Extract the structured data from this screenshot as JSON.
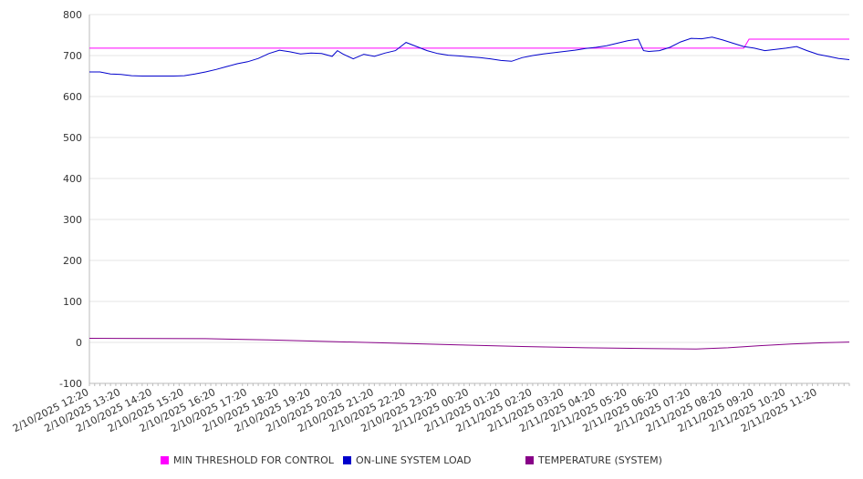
{
  "chart_data": {
    "type": "line",
    "title": "",
    "xlabel": "",
    "ylabel": "",
    "ylim": [
      -100,
      800
    ],
    "yticks": [
      -100,
      0,
      100,
      200,
      300,
      400,
      500,
      600,
      700,
      800
    ],
    "x_range": [
      "2/10/2025 12:20",
      "2/11/2025 12:20"
    ],
    "xtick_labels": [
      "2/10/2025 12:20",
      "2/10/2025 13:20",
      "2/10/2025 14:20",
      "2/10/2025 15:20",
      "2/10/2025 16:20",
      "2/10/2025 17:20",
      "2/10/2025 18:20",
      "2/10/2025 19:20",
      "2/10/2025 20:20",
      "2/10/2025 21:20",
      "2/10/2025 22:20",
      "2/10/2025 23:20",
      "2/11/2025 00:20",
      "2/11/2025 01:20",
      "2/11/2025 02:20",
      "2/11/2025 03:20",
      "2/11/2025 04:20",
      "2/11/2025 05:20",
      "2/11/2025 06:20",
      "2/11/2025 07:20",
      "2/11/2025 08:20",
      "2/11/2025 09:20",
      "2/11/2025 10:20",
      "2/11/2025 11:20"
    ],
    "grid": true,
    "legend_position": "bottom",
    "series": [
      {
        "name": "MIN THRESHOLD FOR CONTROL",
        "color": "#ff00ff",
        "points": [
          [
            "2/10/2025 12:20",
            718
          ],
          [
            "2/11/2025 09:00",
            718
          ],
          [
            "2/11/2025 09:10",
            740
          ],
          [
            "2/11/2025 12:20",
            740
          ]
        ]
      },
      {
        "name": "ON-LINE SYSTEM LOAD",
        "color": "#0000cc",
        "points": [
          [
            "2/10/2025 12:20",
            660
          ],
          [
            "2/10/2025 12:40",
            660
          ],
          [
            "2/10/2025 13:00",
            655
          ],
          [
            "2/10/2025 13:20",
            654
          ],
          [
            "2/10/2025 13:40",
            651
          ],
          [
            "2/10/2025 14:00",
            650
          ],
          [
            "2/10/2025 14:20",
            650
          ],
          [
            "2/10/2025 14:40",
            650
          ],
          [
            "2/10/2025 15:00",
            650
          ],
          [
            "2/10/2025 15:20",
            651
          ],
          [
            "2/10/2025 15:40",
            655
          ],
          [
            "2/10/2025 16:00",
            660
          ],
          [
            "2/10/2025 16:20",
            666
          ],
          [
            "2/10/2025 16:40",
            673
          ],
          [
            "2/10/2025 17:00",
            680
          ],
          [
            "2/10/2025 17:20",
            685
          ],
          [
            "2/10/2025 17:40",
            693
          ],
          [
            "2/10/2025 18:00",
            705
          ],
          [
            "2/10/2025 18:20",
            713
          ],
          [
            "2/10/2025 18:40",
            709
          ],
          [
            "2/10/2025 19:00",
            704
          ],
          [
            "2/10/2025 19:20",
            706
          ],
          [
            "2/10/2025 19:40",
            705
          ],
          [
            "2/10/2025 20:00",
            698
          ],
          [
            "2/10/2025 20:10",
            712
          ],
          [
            "2/10/2025 20:20",
            704
          ],
          [
            "2/10/2025 20:40",
            692
          ],
          [
            "2/10/2025 21:00",
            703
          ],
          [
            "2/10/2025 21:20",
            698
          ],
          [
            "2/10/2025 21:40",
            706
          ],
          [
            "2/10/2025 22:00",
            712
          ],
          [
            "2/10/2025 22:20",
            732
          ],
          [
            "2/10/2025 22:40",
            722
          ],
          [
            "2/10/2025 23:00",
            712
          ],
          [
            "2/10/2025 23:20",
            705
          ],
          [
            "2/10/2025 23:40",
            701
          ],
          [
            "2/11/2025 00:00",
            699
          ],
          [
            "2/11/2025 00:20",
            697
          ],
          [
            "2/11/2025 00:40",
            695
          ],
          [
            "2/11/2025 01:00",
            692
          ],
          [
            "2/11/2025 01:20",
            688
          ],
          [
            "2/11/2025 01:40",
            686
          ],
          [
            "2/11/2025 02:00",
            695
          ],
          [
            "2/11/2025 02:20",
            700
          ],
          [
            "2/11/2025 02:40",
            704
          ],
          [
            "2/11/2025 03:00",
            707
          ],
          [
            "2/11/2025 03:20",
            710
          ],
          [
            "2/11/2025 03:40",
            713
          ],
          [
            "2/11/2025 04:00",
            717
          ],
          [
            "2/11/2025 04:20",
            720
          ],
          [
            "2/11/2025 04:40",
            724
          ],
          [
            "2/11/2025 05:00",
            730
          ],
          [
            "2/11/2025 05:20",
            736
          ],
          [
            "2/11/2025 05:40",
            740
          ],
          [
            "2/11/2025 05:50",
            712
          ],
          [
            "2/11/2025 06:00",
            710
          ],
          [
            "2/11/2025 06:20",
            712
          ],
          [
            "2/11/2025 06:40",
            720
          ],
          [
            "2/11/2025 07:00",
            733
          ],
          [
            "2/11/2025 07:20",
            742
          ],
          [
            "2/11/2025 07:40",
            741
          ],
          [
            "2/11/2025 08:00",
            745
          ],
          [
            "2/11/2025 08:20",
            738
          ],
          [
            "2/11/2025 08:40",
            730
          ],
          [
            "2/11/2025 09:00",
            722
          ],
          [
            "2/11/2025 09:20",
            718
          ],
          [
            "2/11/2025 09:40",
            712
          ],
          [
            "2/11/2025 10:00",
            715
          ],
          [
            "2/11/2025 10:20",
            718
          ],
          [
            "2/11/2025 10:40",
            722
          ],
          [
            "2/11/2025 11:00",
            712
          ],
          [
            "2/11/2025 11:20",
            703
          ],
          [
            "2/11/2025 11:40",
            698
          ],
          [
            "2/11/2025 12:00",
            693
          ],
          [
            "2/11/2025 12:20",
            690
          ]
        ]
      },
      {
        "name": "TEMPERATURE (SYSTEM)",
        "color": "#880088",
        "points": [
          [
            "2/10/2025 12:20",
            10
          ],
          [
            "2/10/2025 16:00",
            9
          ],
          [
            "2/10/2025 18:00",
            6
          ],
          [
            "2/10/2025 20:00",
            2
          ],
          [
            "2/10/2025 22:00",
            -2
          ],
          [
            "2/11/2025 00:00",
            -6
          ],
          [
            "2/11/2025 02:00",
            -10
          ],
          [
            "2/11/2025 04:00",
            -13
          ],
          [
            "2/11/2025 06:00",
            -15
          ],
          [
            "2/11/2025 07:30",
            -16
          ],
          [
            "2/11/2025 08:30",
            -13
          ],
          [
            "2/11/2025 09:30",
            -8
          ],
          [
            "2/11/2025 10:30",
            -4
          ],
          [
            "2/11/2025 11:30",
            -1
          ],
          [
            "2/11/2025 12:20",
            1
          ]
        ]
      }
    ]
  }
}
